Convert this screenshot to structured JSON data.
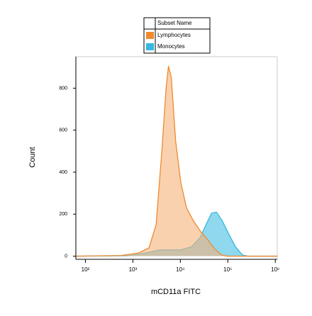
{
  "chart_data": {
    "type": "area",
    "xlabel": "mCD11a FITC",
    "ylabel": "Count",
    "legend_title": "Subset Name",
    "legend": "top",
    "xscale": "log",
    "xlim": [
      63,
      1100000
    ],
    "ylim": [
      -15,
      950
    ],
    "xticks": [
      {
        "value": 100,
        "label": "10²"
      },
      {
        "value": 1000,
        "label": "10³"
      },
      {
        "value": 10000,
        "label": "10⁴"
      },
      {
        "value": 100000,
        "label": "10⁵"
      },
      {
        "value": 1000000,
        "label": "10⁶"
      }
    ],
    "yticks": [
      0,
      200,
      400,
      600,
      800
    ],
    "series": [
      {
        "name": "Lymphocytes",
        "color": "#ee8a2e",
        "x": [
          63,
          562,
          1318,
          2188,
          3090,
          4074,
          5012,
          5623,
          6457,
          7943,
          10233,
          13490,
          18621,
          26303,
          37154,
          52481,
          74131,
          97724,
          1100000
        ],
        "values": [
          0,
          3,
          15,
          40,
          150,
          500,
          800,
          905,
          850,
          550,
          350,
          230,
          170,
          120,
          80,
          35,
          5,
          0,
          0
        ]
      },
      {
        "name": "Monocytes",
        "color": "#35b9e0",
        "x": [
          63,
          794,
          1862,
          3715,
          10233,
          17378,
          26303,
          34674,
          45709,
          57544,
          75858,
          102329,
          144544,
          204174,
          269153,
          1100000
        ],
        "values": [
          0,
          2,
          15,
          30,
          30,
          45,
          90,
          150,
          205,
          210,
          170,
          110,
          45,
          5,
          0,
          0
        ]
      }
    ]
  }
}
